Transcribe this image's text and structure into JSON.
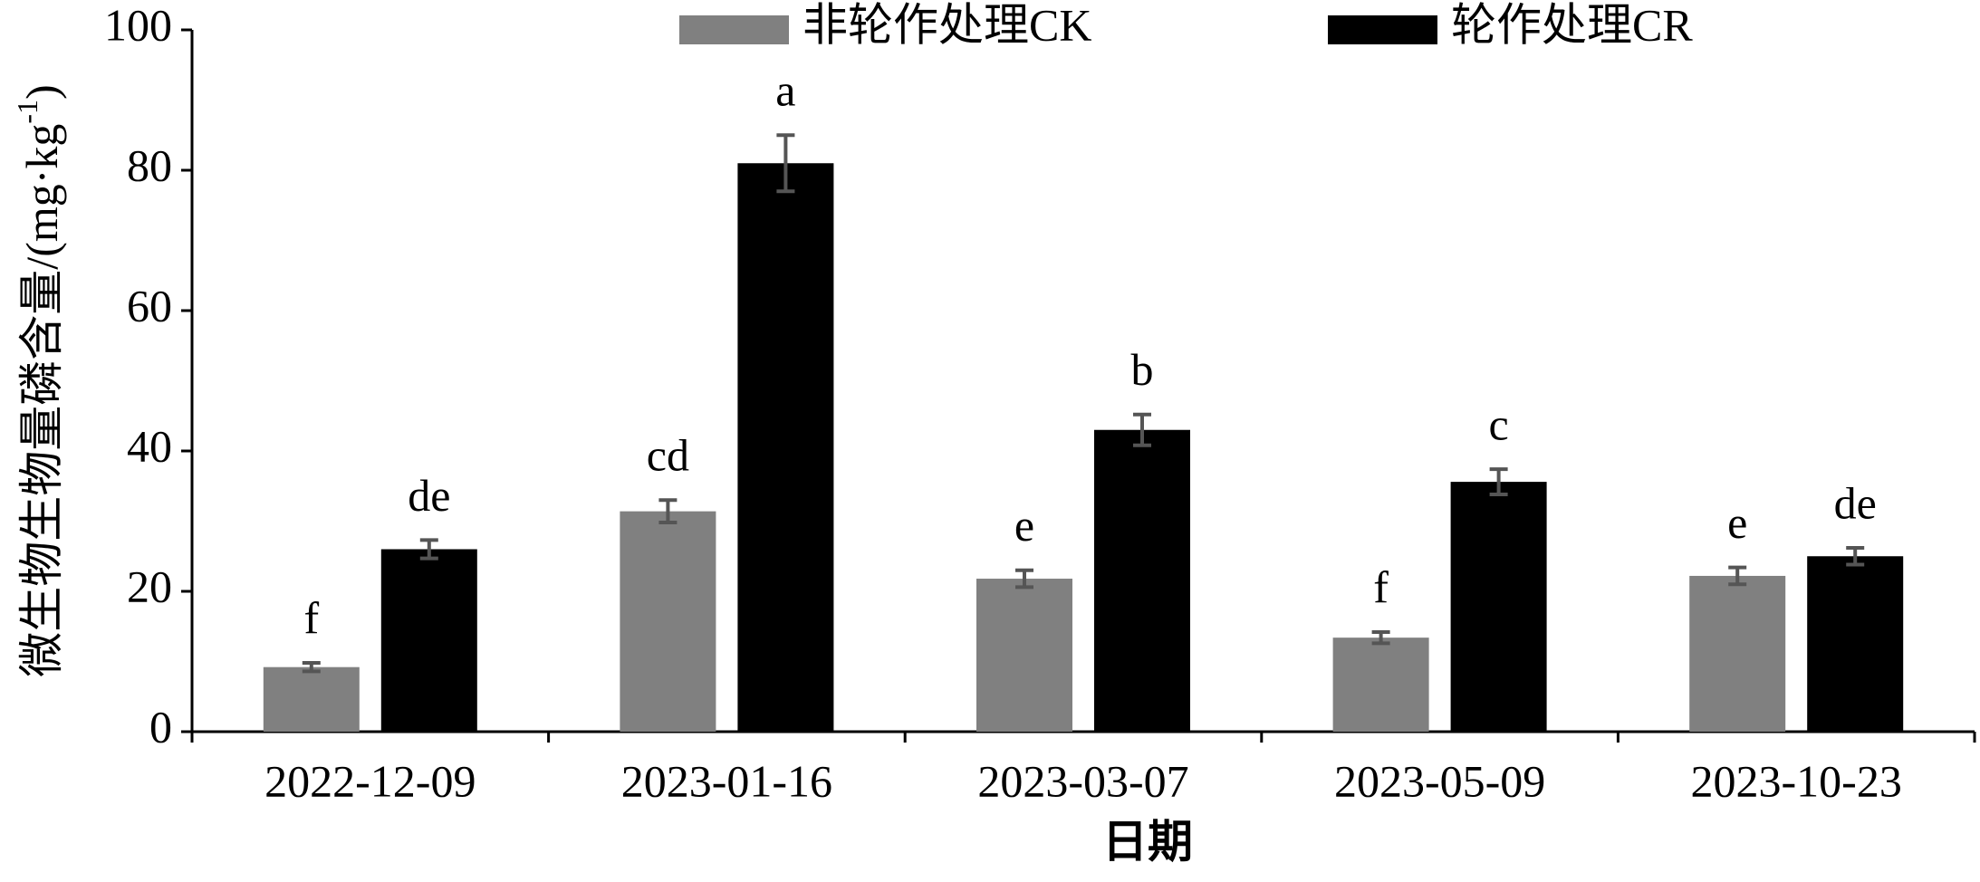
{
  "chart_data": {
    "type": "bar",
    "categories": [
      "2022-12-09",
      "2023-01-16",
      "2023-03-07",
      "2023-05-09",
      "2023-10-23"
    ],
    "series": [
      {
        "name": "非轮作处理CK",
        "color": "#808080",
        "values": [
          9.2,
          31.4,
          21.8,
          13.4,
          22.2
        ],
        "errors": [
          0.6,
          1.6,
          1.2,
          0.8,
          1.2
        ],
        "letters": [
          "f",
          "cd",
          "e",
          "f",
          "e"
        ]
      },
      {
        "name": "轮作处理CR",
        "color": "#000000",
        "values": [
          26.0,
          81.0,
          43.0,
          35.6,
          25.0
        ],
        "errors": [
          1.3,
          4.0,
          2.2,
          1.8,
          1.2
        ],
        "letters": [
          "de",
          "a",
          "b",
          "c",
          "de"
        ]
      }
    ],
    "error_color": "#555555",
    "ylim": [
      0,
      100
    ],
    "yticks": [
      0,
      20,
      40,
      60,
      80,
      100
    ],
    "ylabel_parts": [
      "微生物生物量磷含量/(mg·kg",
      "-1",
      ")"
    ],
    "xlabel": "日期"
  }
}
